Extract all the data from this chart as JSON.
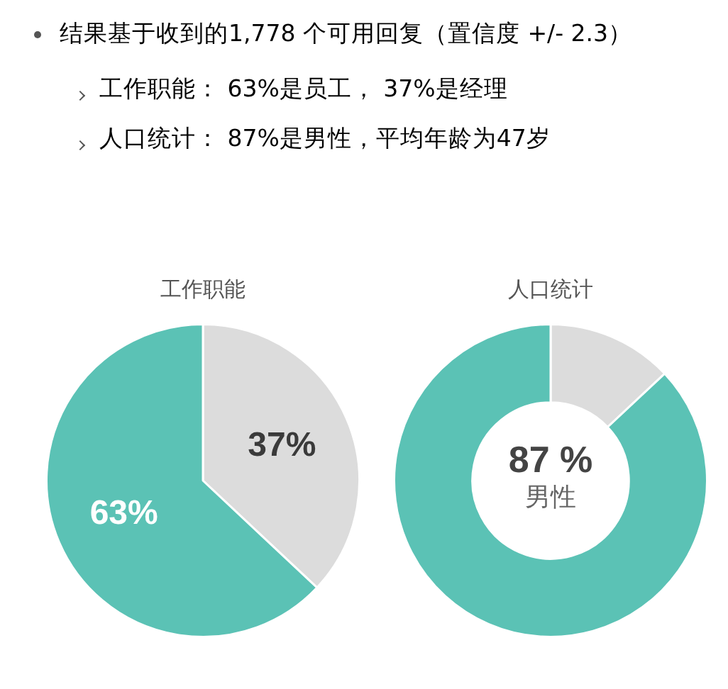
{
  "chart_data": [
    {
      "type": "other",
      "annotations": [
        "结果基于收到的1,778 个可用回复（置信度 +/- 2.3）",
        "工作职能： 63%是员工， 37%是经理",
        "人口统计： 87%是男性，平均年龄为47岁"
      ]
    },
    {
      "type": "pie",
      "title": "工作职能",
      "categories": [
        null,
        null
      ],
      "values": [
        37,
        63
      ],
      "colors": [
        "#dcdcdc",
        "#5bc2b5"
      ],
      "value_labels": [
        "37%",
        "63%"
      ]
    },
    {
      "type": "donut",
      "title": "人口统计",
      "categories": [
        null,
        null
      ],
      "values": [
        13,
        87
      ],
      "colors": [
        "#dcdcdc",
        "#5bc2b5"
      ],
      "annotations": [
        "87 %",
        "男性"
      ]
    }
  ]
}
